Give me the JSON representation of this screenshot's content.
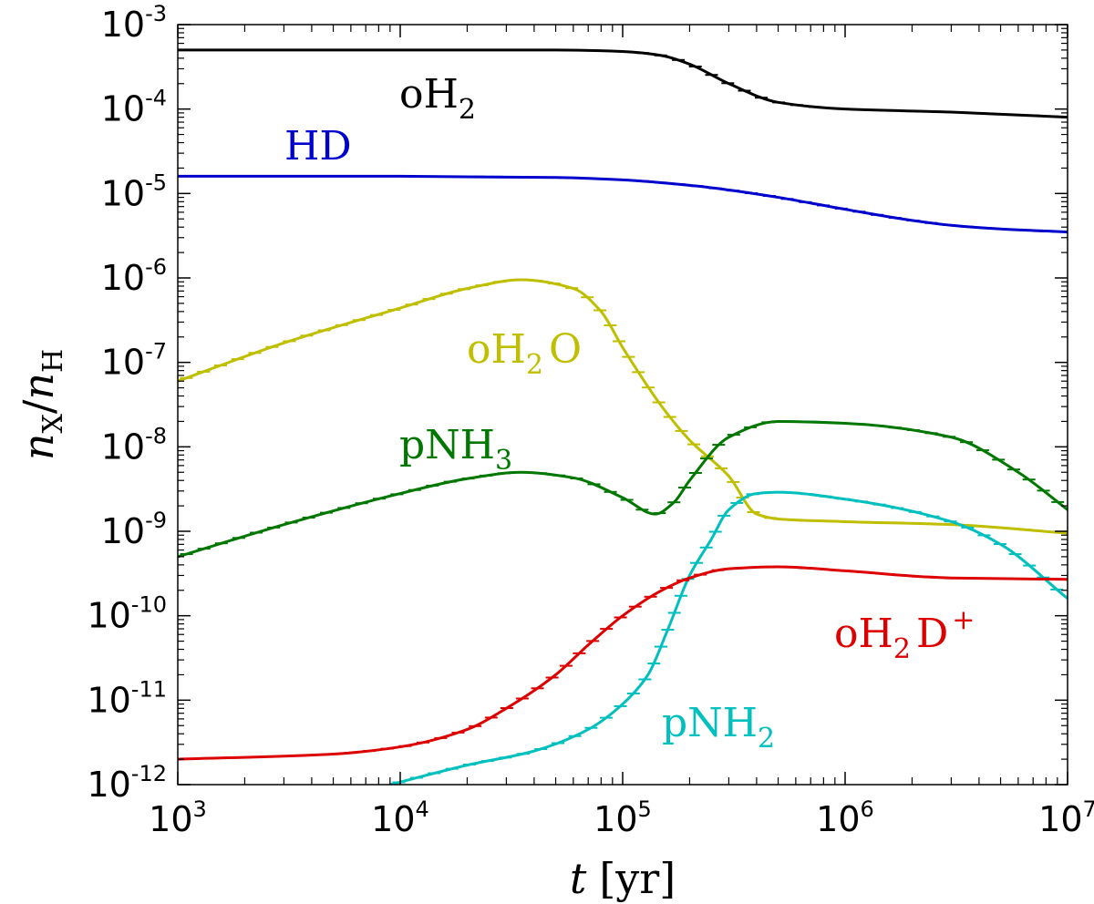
{
  "chart_data": {
    "type": "line",
    "title": "",
    "xlabel": {
      "main": "t",
      "unit": "[yr]"
    },
    "ylabel": {
      "num": "n",
      "num_sub": "X",
      "den": "n",
      "den_sub": "H"
    },
    "xscale": "log",
    "yscale": "log",
    "xlim": [
      1000,
      10000000
    ],
    "ylim": [
      1e-12,
      0.001
    ],
    "grid": false,
    "legend": "inline labels",
    "x_ticks": [
      {
        "value": 1000,
        "base": "10",
        "exp": "3"
      },
      {
        "value": 10000,
        "base": "10",
        "exp": "4"
      },
      {
        "value": 100000,
        "base": "10",
        "exp": "5"
      },
      {
        "value": 1000000,
        "base": "10",
        "exp": "6"
      },
      {
        "value": 10000000,
        "base": "10",
        "exp": "7"
      }
    ],
    "y_ticks": [
      {
        "value": 0.001,
        "base": "10",
        "exp": "-3"
      },
      {
        "value": 0.0001,
        "base": "10",
        "exp": "-4"
      },
      {
        "value": 1e-05,
        "base": "10",
        "exp": "-5"
      },
      {
        "value": 1e-06,
        "base": "10",
        "exp": "-6"
      },
      {
        "value": 1e-07,
        "base": "10",
        "exp": "-7"
      },
      {
        "value": 1e-08,
        "base": "10",
        "exp": "-8"
      },
      {
        "value": 1e-09,
        "base": "10",
        "exp": "-9"
      },
      {
        "value": 1e-10,
        "base": "10",
        "exp": "-10"
      },
      {
        "value": 1e-11,
        "base": "10",
        "exp": "-11"
      },
      {
        "value": 1e-12,
        "base": "10",
        "exp": "-12"
      }
    ],
    "series": [
      {
        "name": "oH2",
        "label_main": "oH",
        "label_sub": "2",
        "label_sup": "",
        "label_tail": "",
        "color": "#000000",
        "x": [
          1000,
          10000,
          50000,
          100000,
          150000,
          200000,
          300000,
          500000,
          1000000,
          3000000,
          10000000
        ],
        "y": [
          0.0005,
          0.0005,
          0.0005,
          0.00048,
          0.00043,
          0.00034,
          0.0002,
          0.00012,
          0.0001,
          9.2e-05,
          8e-05
        ]
      },
      {
        "name": "HD",
        "label_main": "HD",
        "label_sub": "",
        "label_sup": "",
        "label_tail": "",
        "color": "#0000cc",
        "x": [
          1000,
          10000,
          50000,
          100000,
          200000,
          300000,
          500000,
          1000000,
          2000000,
          3000000,
          5000000,
          10000000
        ],
        "y": [
          1.6e-05,
          1.6e-05,
          1.55e-05,
          1.45e-05,
          1.25e-05,
          1.1e-05,
          9e-06,
          6.5e-06,
          4.8e-06,
          4.2e-06,
          3.8e-06,
          3.5e-06
        ]
      },
      {
        "name": "oH2O",
        "label_main": "oH",
        "label_sub": "2",
        "label_sup": "",
        "label_tail": "O",
        "color": "#bfbf00",
        "x": [
          1000,
          3000,
          10000,
          20000,
          35000,
          60000,
          80000,
          100000,
          150000,
          200000,
          300000,
          400000,
          500000,
          1000000,
          3000000,
          10000000
        ],
        "y": [
          6e-08,
          1.7e-07,
          4.4e-07,
          7.5e-07,
          9.5e-07,
          7.5e-07,
          4e-07,
          1.5e-07,
          3e-08,
          1.2e-08,
          4.5e-09,
          1.6e-09,
          1.4e-09,
          1.3e-09,
          1.2e-09,
          9.5e-10
        ]
      },
      {
        "name": "pNH3",
        "label_main": "pNH",
        "label_sub": "3",
        "label_sup": "",
        "label_tail": "",
        "color": "#007700",
        "x": [
          1000,
          3000,
          10000,
          20000,
          35000,
          60000,
          100000,
          140000,
          170000,
          200000,
          300000,
          500000,
          1000000,
          3000000,
          6000000,
          10000000
        ],
        "y": [
          5e-10,
          1.2e-09,
          2.8e-09,
          4.2e-09,
          5e-09,
          4.3e-09,
          2.5e-09,
          1.6e-09,
          2.2e-09,
          4e-09,
          1.3e-08,
          2e-08,
          1.9e-08,
          1.3e-08,
          5e-09,
          1.8e-09
        ]
      },
      {
        "name": "pNH2",
        "label_main": "pNH",
        "label_sub": "2",
        "label_sup": "",
        "label_tail": "",
        "color": "#00bfbf",
        "x": [
          9000,
          20000,
          40000,
          70000,
          100000,
          130000,
          160000,
          200000,
          250000,
          300000,
          400000,
          500000,
          1000000,
          3000000,
          5000000,
          10000000
        ],
        "y": [
          1e-12,
          1.7e-12,
          2.5e-12,
          4.5e-12,
          9e-12,
          2e-11,
          7e-11,
          3e-10,
          8e-10,
          1.8e-09,
          2.8e-09,
          2.9e-09,
          2.4e-09,
          1.3e-09,
          7e-10,
          1.6e-10
        ]
      },
      {
        "name": "oH2D+",
        "label_main": "oH",
        "label_sub": "2",
        "label_sup": "+",
        "label_tail": "D",
        "color": "#dd0000",
        "x": [
          1000,
          5000,
          10000,
          20000,
          30000,
          50000,
          70000,
          100000,
          150000,
          200000,
          300000,
          500000,
          1000000,
          3000000,
          10000000
        ],
        "y": [
          2e-12,
          2.3e-12,
          2.8e-12,
          4.5e-12,
          8e-12,
          2e-11,
          4.5e-11,
          1e-10,
          2e-10,
          2.8e-10,
          3.6e-10,
          3.8e-10,
          3.4e-10,
          2.8e-10,
          2.7e-10
        ]
      }
    ]
  }
}
